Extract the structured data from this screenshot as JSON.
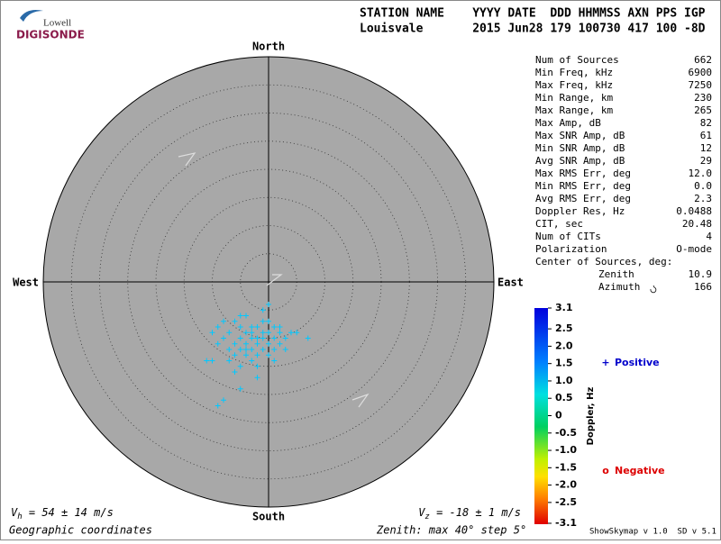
{
  "logo": {
    "top": "Lowell",
    "bottom": "DIGISONDE"
  },
  "header": {
    "line1": "STATION NAME    YYYY DATE  DDD HHMMSS AXN PPS IGP",
    "line2": "Louisvale       2015 Jun28 179 100730 417 100 -8D"
  },
  "stats": {
    "rows": [
      [
        "Num of Sources",
        "662"
      ],
      [
        "Min Freq, kHz",
        "6900"
      ],
      [
        "Max Freq, kHz",
        "7250"
      ],
      [
        "Min Range, km",
        "230"
      ],
      [
        "Max Range, km",
        "265"
      ],
      [
        "Max Amp, dB",
        "82"
      ],
      [
        "Max SNR Amp, dB",
        "61"
      ],
      [
        "Min SNR Amp, dB",
        "12"
      ],
      [
        "Avg SNR Amp, dB",
        "29"
      ],
      [
        "Max RMS Err, deg",
        "12.0"
      ],
      [
        "Min RMS Err, deg",
        "0.0"
      ],
      [
        "Avg RMS Err, deg",
        "2.3"
      ],
      [
        "Doppler Res, Hz",
        "0.0488"
      ],
      [
        "CIT, sec",
        "20.48"
      ],
      [
        "Num of CITs",
        "4"
      ],
      [
        "Polarization",
        "O-mode"
      ]
    ],
    "center_title": "Center of Sources, deg:",
    "center_rows": [
      [
        "Zenith",
        "10.9"
      ],
      [
        "Azimuth",
        "166"
      ]
    ]
  },
  "chart_data": {
    "type": "polar-scatter",
    "directions": {
      "north": "North",
      "south": "South",
      "east": "East",
      "west": "West"
    },
    "rlim": [
      0,
      40
    ],
    "rticks": [
      5,
      10,
      15,
      20,
      25,
      30,
      35
    ],
    "point_color": "#00c8ff",
    "series": [
      {
        "name": "Positive",
        "marker": "+",
        "color": "#0000cc",
        "x": [
          -3,
          -2,
          -4,
          -1,
          0,
          -5,
          -3,
          -2,
          1,
          -6,
          -4,
          -1,
          2,
          -3,
          0,
          -5,
          -7,
          -8,
          -9,
          -6,
          -4,
          -2,
          0,
          1,
          3,
          4,
          5,
          7,
          -10,
          -11,
          -5,
          -2,
          -1,
          -1,
          0,
          -4,
          -6,
          -8,
          -7,
          -3,
          -5,
          -1,
          1,
          2,
          -2,
          -4,
          -3,
          0,
          -5,
          3,
          -9,
          -5,
          -9,
          -8,
          2,
          -6,
          1,
          -2,
          -7,
          -10
        ],
        "y": [
          -10,
          -11,
          -9,
          -10,
          -9,
          -10,
          -12,
          -8,
          -10,
          -11,
          -12,
          -12,
          -9,
          -8,
          -11,
          -8,
          -9,
          -7,
          -8,
          -13,
          -13,
          -13,
          -13,
          -12,
          -10,
          -9,
          -9,
          -10,
          -14,
          -14,
          -15,
          -15,
          -7,
          -5,
          -4,
          -6,
          -7,
          -10,
          -12,
          -14,
          -12,
          -9,
          -8,
          -11,
          -10,
          -11,
          -9,
          -7,
          -6,
          -12,
          -11,
          -19,
          -22,
          -21,
          -8,
          -16,
          -14,
          -17,
          -14,
          -9
        ]
      },
      {
        "name": "Negative",
        "marker": "o",
        "color": "#dd0000",
        "x": [],
        "y": []
      }
    ],
    "vh": {
      "symbol": "V",
      "sub": "h",
      "text": " = 54 ± 14 m/s"
    },
    "vz": {
      "symbol": "V",
      "sub": "z",
      "text": " = -18 ± 1 m/s"
    },
    "coords_label": "Geographic coordinates",
    "zenith_label": "Zenith: max 40°  step 5°"
  },
  "colorbar": {
    "label": "Doppler, Hz",
    "lim": [
      -3.1,
      3.1
    ],
    "ticks": [
      3.1,
      2.5,
      {
        "value": 2,
        "label": "2.0"
      },
      1.5,
      {
        "value": 1,
        "label": "1.0"
      },
      0.5,
      0,
      -0.5,
      {
        "value": -1,
        "label": "-1.0"
      },
      -1.5,
      {
        "value": -2,
        "label": "-2.0"
      },
      -2.5,
      -3.1
    ]
  },
  "footer": {
    "version": "ShowSkymap v 1.0  SD v 5.1"
  }
}
